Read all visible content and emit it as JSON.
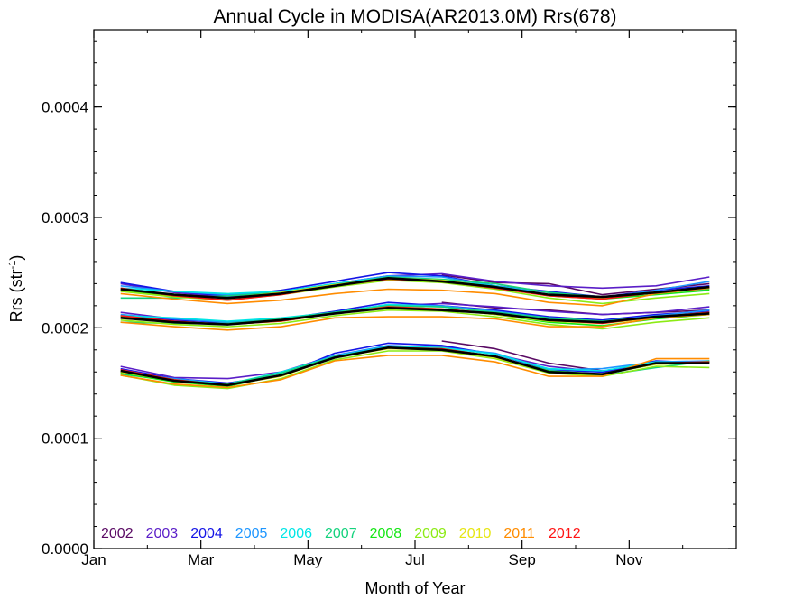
{
  "chart_data": {
    "type": "line",
    "title": "Annual Cycle in MODISA(AR2013.0M) Rrs(678)",
    "xlabel": "Month of Year",
    "ylabel_main": "Rrs (str",
    "ylabel_sup": "-1",
    "ylabel_end": ")",
    "xlim": [
      0,
      12
    ],
    "ylim": [
      0,
      0.00047
    ],
    "x_ticks": [
      {
        "value": 0,
        "label": "Jan"
      },
      {
        "value": 2,
        "label": "Mar"
      },
      {
        "value": 4,
        "label": "May"
      },
      {
        "value": 6,
        "label": "Jul"
      },
      {
        "value": 8,
        "label": "Sep"
      },
      {
        "value": 10,
        "label": "Nov"
      }
    ],
    "y_ticks": [
      {
        "value": 0,
        "label": "0.0000"
      },
      {
        "value": 0.0001,
        "label": "0.0001"
      },
      {
        "value": 0.0002,
        "label": "0.0002"
      },
      {
        "value": 0.0003,
        "label": "0.0003"
      },
      {
        "value": 0.0004,
        "label": "0.0004"
      }
    ],
    "grid": false,
    "legend_position": "bottom-left",
    "x": [
      0.5,
      1.5,
      2.5,
      3.5,
      4.5,
      5.5,
      6.5,
      7.5,
      8.5,
      9.5,
      10.5,
      11.5
    ],
    "series": [
      {
        "name": "2002",
        "color": "#5a0a64",
        "upper": [
          null,
          null,
          null,
          null,
          null,
          null,
          0.000248,
          0.000241,
          0.00024,
          0.00023,
          0.000235,
          0.00024
        ],
        "middle": [
          null,
          null,
          null,
          null,
          null,
          null,
          0.000223,
          0.000218,
          0.000216,
          0.000212,
          0.000214,
          0.000216
        ],
        "lower": [
          null,
          null,
          null,
          null,
          null,
          null,
          0.000188,
          0.000181,
          0.000168,
          0.000161,
          0.000167,
          0.000169
        ]
      },
      {
        "name": "2003",
        "color": "#5a1ec8",
        "upper": [
          0.00024,
          0.000232,
          0.000228,
          0.000232,
          0.00024,
          0.000247,
          0.000249,
          0.000242,
          0.000238,
          0.000236,
          0.000238,
          0.000246
        ],
        "middle": [
          0.000214,
          0.000208,
          0.000204,
          0.000207,
          0.000214,
          0.00022,
          0.000222,
          0.000219,
          0.000215,
          0.000212,
          0.000214,
          0.000219
        ],
        "lower": [
          0.000165,
          0.000155,
          0.000154,
          0.00016,
          0.000175,
          0.000183,
          0.000183,
          0.000176,
          0.000165,
          0.00016,
          0.000168,
          0.000169
        ]
      },
      {
        "name": "2004",
        "color": "#1414e6",
        "upper": [
          0.000241,
          0.000233,
          0.000229,
          0.000234,
          0.000242,
          0.00025,
          0.000247,
          0.000238,
          0.000233,
          0.000228,
          0.000234,
          0.000238
        ],
        "middle": [
          0.000211,
          0.000207,
          0.000205,
          0.000208,
          0.000215,
          0.000223,
          0.00022,
          0.000216,
          0.00021,
          0.000207,
          0.000212,
          0.000215
        ],
        "lower": [
          0.000163,
          0.000154,
          0.00015,
          0.000157,
          0.000177,
          0.000186,
          0.000184,
          0.000176,
          0.000162,
          0.00016,
          0.00017,
          0.000168
        ]
      },
      {
        "name": "2005",
        "color": "#1e96ff",
        "upper": [
          0.000238,
          0.000233,
          0.00023,
          0.000233,
          0.00024,
          0.000247,
          0.000246,
          0.000238,
          0.000232,
          0.000227,
          0.000234,
          0.000242
        ],
        "middle": [
          0.000212,
          0.000208,
          0.000205,
          0.000208,
          0.000214,
          0.000221,
          0.00022,
          0.000215,
          0.000209,
          0.000206,
          0.000211,
          0.000216
        ],
        "lower": [
          0.00016,
          0.000154,
          0.000149,
          0.000159,
          0.000175,
          0.000184,
          0.000182,
          0.000177,
          0.000162,
          0.000163,
          0.000169,
          0.00017
        ]
      },
      {
        "name": "2006",
        "color": "#00e6e6",
        "upper": [
          0.000236,
          0.000233,
          0.000231,
          0.000233,
          0.00024,
          0.000246,
          0.000243,
          0.000238,
          0.00023,
          0.000226,
          0.000232,
          0.000236
        ],
        "middle": [
          0.000211,
          0.000209,
          0.000206,
          0.000209,
          0.000214,
          0.000221,
          0.000219,
          0.000214,
          0.000208,
          0.000205,
          0.00021,
          0.000214
        ],
        "lower": [
          0.00016,
          0.000153,
          0.000149,
          0.00016,
          0.000174,
          0.000183,
          0.000182,
          0.000176,
          0.000163,
          0.000161,
          0.000169,
          0.000168
        ]
      },
      {
        "name": "2007",
        "color": "#14d27d",
        "upper": [
          0.000227,
          0.000227,
          0.000229,
          0.000232,
          0.000239,
          0.000246,
          0.000244,
          0.00024,
          0.000232,
          0.000228,
          0.000232,
          0.000235
        ],
        "middle": [
          0.000205,
          0.000204,
          0.000204,
          0.000208,
          0.000214,
          0.00022,
          0.000219,
          0.000214,
          0.000209,
          0.000206,
          0.00021,
          0.000214
        ],
        "lower": [
          0.000158,
          0.000152,
          0.000149,
          0.000159,
          0.000174,
          0.000182,
          0.00018,
          0.000174,
          0.00016,
          0.000157,
          0.000164,
          0.00017
        ]
      },
      {
        "name": "2008",
        "color": "#14e614",
        "upper": [
          0.000234,
          0.000229,
          0.000227,
          0.000231,
          0.000238,
          0.000244,
          0.000243,
          0.000237,
          0.000229,
          0.000226,
          0.00023,
          0.000234
        ],
        "middle": [
          0.00021,
          0.000205,
          0.000203,
          0.000206,
          0.000213,
          0.000219,
          0.000217,
          0.000212,
          0.000205,
          0.000202,
          0.000208,
          0.000212
        ],
        "lower": [
          0.000159,
          0.000151,
          0.000147,
          0.000157,
          0.000173,
          0.000182,
          0.000181,
          0.000174,
          0.000161,
          0.000158,
          0.000167,
          0.000168
        ]
      },
      {
        "name": "2009",
        "color": "#8ceb14",
        "upper": [
          0.000233,
          0.000228,
          0.000225,
          0.00023,
          0.000237,
          0.000243,
          0.000241,
          0.000235,
          0.000227,
          0.000222,
          0.000227,
          0.000231
        ],
        "middle": [
          0.000207,
          0.000203,
          0.000201,
          0.000204,
          0.000211,
          0.000216,
          0.000215,
          0.00021,
          0.000203,
          0.000199,
          0.000205,
          0.000209
        ],
        "lower": [
          0.000157,
          0.000148,
          0.000145,
          0.000154,
          0.000171,
          0.000179,
          0.000179,
          0.000172,
          0.000159,
          0.000156,
          0.000165,
          0.000164
        ]
      },
      {
        "name": "2010",
        "color": "#e6e614",
        "upper": [
          0.000235,
          0.00023,
          0.000227,
          0.000232,
          0.000239,
          0.000245,
          0.000243,
          0.000237,
          0.00023,
          0.000227,
          0.000232,
          0.000236
        ],
        "middle": [
          0.000209,
          0.000205,
          0.000203,
          0.000206,
          0.000213,
          0.000219,
          0.000217,
          0.000212,
          0.000206,
          0.000204,
          0.000209,
          0.000213
        ],
        "lower": [
          0.00016,
          0.000152,
          0.000148,
          0.000156,
          0.000173,
          0.000181,
          0.00018,
          0.000173,
          0.00016,
          0.000158,
          0.000167,
          0.000168
        ]
      },
      {
        "name": "2011",
        "color": "#ff8c00",
        "upper": [
          0.000231,
          0.000226,
          0.000222,
          0.000225,
          0.000231,
          0.000235,
          0.000234,
          0.000231,
          0.000223,
          0.00022,
          0.000231,
          0.000236
        ],
        "middle": [
          0.000205,
          0.000201,
          0.000198,
          0.000201,
          0.000209,
          0.00021,
          0.00021,
          0.000208,
          0.000201,
          0.000201,
          0.000209,
          0.000212
        ],
        "lower": [
          0.000157,
          0.000149,
          0.000146,
          0.000153,
          0.00017,
          0.000175,
          0.000175,
          0.000169,
          0.000156,
          0.000156,
          0.000172,
          0.000172
        ]
      },
      {
        "name": "2012",
        "color": "#ff1414",
        "upper": [
          0.000236,
          0.000229,
          0.000225,
          0.00023,
          0.000238,
          0.000244,
          0.000242,
          0.000236,
          0.000229,
          0.000226,
          0.000232,
          0.000237
        ],
        "middle": [
          0.000211,
          0.000206,
          0.000203,
          0.000206,
          0.000213,
          0.000219,
          0.000217,
          0.000213,
          0.000207,
          0.000204,
          0.00021,
          0.000214
        ],
        "lower": [
          0.000162,
          0.000153,
          0.000148,
          0.000157,
          0.000173,
          0.000182,
          0.000181,
          0.000174,
          0.00016,
          0.000158,
          0.000168,
          0.000169
        ]
      },
      {
        "name": "",
        "color": "#000000",
        "upper": [
          0.000235,
          0.00023,
          0.000227,
          0.000231,
          0.000238,
          0.000245,
          0.000242,
          0.000237,
          0.00023,
          0.000228,
          0.000232,
          0.000237
        ],
        "middle": [
          0.000209,
          0.000205,
          0.000203,
          0.000207,
          0.000213,
          0.000218,
          0.000216,
          0.000213,
          0.000207,
          0.000205,
          0.00021,
          0.000213
        ],
        "lower": [
          0.000161,
          0.000152,
          0.000148,
          0.000157,
          0.000173,
          0.000182,
          0.00018,
          0.000174,
          0.00016,
          0.000158,
          0.000168,
          0.000168
        ]
      }
    ]
  }
}
